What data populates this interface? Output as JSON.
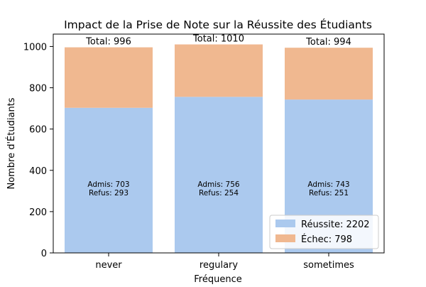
{
  "chart_data": {
    "type": "bar",
    "stacked": true,
    "title": "Impact de la Prise de Note sur la Réussite des Étudiants",
    "xlabel": "Fréquence",
    "ylabel": "Nombre d'Étudiants",
    "categories": [
      "never",
      "regulary",
      "sometimes"
    ],
    "ylim": [
      0,
      1060
    ],
    "yticks": [
      0,
      200,
      400,
      600,
      800,
      1000
    ],
    "series": [
      {
        "name": "Réussite: 2202",
        "color": "#abc9ee",
        "values": [
          703,
          756,
          743
        ]
      },
      {
        "name": "Échec: 798",
        "color": "#f0b890",
        "values": [
          293,
          254,
          251
        ]
      }
    ],
    "total_labels": [
      "Total: 996",
      "Total: 1010",
      "Total: 994"
    ],
    "bar_annotations": [
      [
        "Admis: 703",
        "Refus: 293"
      ],
      [
        "Admis: 756",
        "Refus: 254"
      ],
      [
        "Admis: 743",
        "Refus: 251"
      ]
    ],
    "legend_position": "lower-right",
    "grid": false
  }
}
